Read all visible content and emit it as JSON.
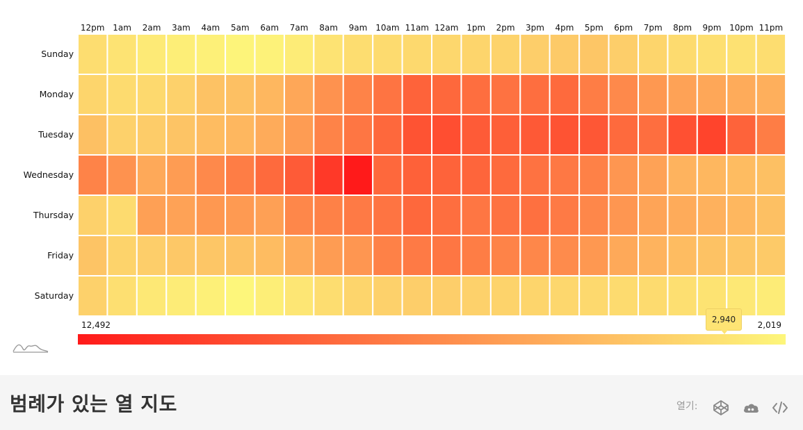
{
  "chart_data": {
    "type": "heatmap",
    "x_categories": [
      "12pm",
      "1am",
      "2am",
      "3am",
      "4am",
      "5am",
      "6am",
      "7am",
      "8am",
      "9am",
      "10am",
      "11am",
      "12am",
      "1pm",
      "2pm",
      "3pm",
      "4pm",
      "5pm",
      "6pm",
      "7pm",
      "8pm",
      "9pm",
      "10pm",
      "11pm"
    ],
    "y_categories": [
      "Sunday",
      "Monday",
      "Tuesday",
      "Wednesday",
      "Thursday",
      "Friday",
      "Saturday"
    ],
    "values": [
      [
        3200,
        2900,
        2600,
        2400,
        2300,
        2100,
        2200,
        2500,
        2900,
        3200,
        3300,
        3400,
        3500,
        3600,
        3700,
        3900,
        4100,
        4300,
        3900,
        3600,
        3300,
        3100,
        3000,
        3200
      ],
      [
        3600,
        3300,
        3400,
        3800,
        4500,
        4600,
        5000,
        5800,
        6800,
        7500,
        8200,
        9000,
        8800,
        8500,
        8300,
        8500,
        8700,
        7800,
        7200,
        6500,
        6000,
        5800,
        5600,
        5400
      ],
      [
        4600,
        3800,
        4000,
        4400,
        4800,
        5000,
        5600,
        6300,
        7500,
        8100,
        8800,
        9800,
        10000,
        9400,
        9200,
        9500,
        9800,
        9600,
        8700,
        8500,
        9900,
        10500,
        9000,
        7800
      ],
      [
        7500,
        6800,
        5700,
        6300,
        7200,
        7800,
        8700,
        9400,
        11000,
        12492,
        8800,
        9100,
        9000,
        8900,
        8700,
        8300,
        8000,
        7600,
        6600,
        6000,
        5200,
        5000,
        4800,
        4600
      ],
      [
        3800,
        3300,
        6100,
        6000,
        6500,
        6400,
        6100,
        7300,
        7600,
        7900,
        8200,
        8800,
        8500,
        8100,
        8300,
        8400,
        7900,
        7300,
        6600,
        5900,
        5600,
        5300,
        5000,
        4600
      ],
      [
        4400,
        3700,
        3900,
        4200,
        4300,
        4500,
        4800,
        5600,
        6300,
        6600,
        7600,
        7900,
        8100,
        7800,
        7500,
        7300,
        7100,
        6500,
        5700,
        5200,
        4800,
        4500,
        4300,
        4100
      ],
      [
        3800,
        3100,
        2700,
        2500,
        2300,
        2019,
        2400,
        2800,
        3200,
        3600,
        3800,
        3900,
        3900,
        3800,
        3700,
        3600,
        3500,
        3400,
        3300,
        3300,
        3100,
        2940,
        2700,
        2500
      ]
    ],
    "min": 2019,
    "max": 12492,
    "color_scale": [
      "#ff1a1a",
      "#fdf67b"
    ],
    "legend": {
      "min_label": "12,492",
      "max_label": "2,019",
      "tooltip_value": 2940,
      "tooltip_label": "2,940",
      "placement": "bottom"
    }
  },
  "footer": {
    "title": "범례가 있는 열 지도",
    "open_label": "열기:",
    "icons": [
      "codepen-icon",
      "cloud-icon",
      "code-icon"
    ]
  },
  "colors": {
    "footer_bg": "#f5f5f5",
    "title": "#333333",
    "tooltip_bg": "#fee474"
  }
}
